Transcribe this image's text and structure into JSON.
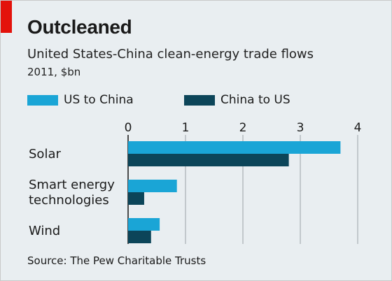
{
  "header": {
    "title": "Outcleaned",
    "subtitle": "United States-China clean-energy trade flows",
    "unit": "2011, $bn"
  },
  "source": "Source: The Pew Charitable Trusts",
  "colors": {
    "us_to_china": "#1aa5d6",
    "china_to_us": "#0c4559",
    "accent": "#e3120b",
    "background": "#e9eef1"
  },
  "chart_data": {
    "type": "bar",
    "orientation": "horizontal",
    "categories": [
      "Solar",
      "Smart energy technologies",
      "Wind"
    ],
    "category_lines": [
      [
        "Solar"
      ],
      [
        "Smart energy",
        "technologies"
      ],
      [
        "Wind"
      ]
    ],
    "series": [
      {
        "name": "US to China",
        "values": [
          3.7,
          0.85,
          0.55
        ]
      },
      {
        "name": "China to US",
        "values": [
          2.8,
          0.28,
          0.4
        ]
      }
    ],
    "xticks": [
      "0",
      "1",
      "2",
      "3",
      "4"
    ],
    "xlim": [
      0,
      4
    ],
    "grid": true,
    "legend": "top"
  }
}
